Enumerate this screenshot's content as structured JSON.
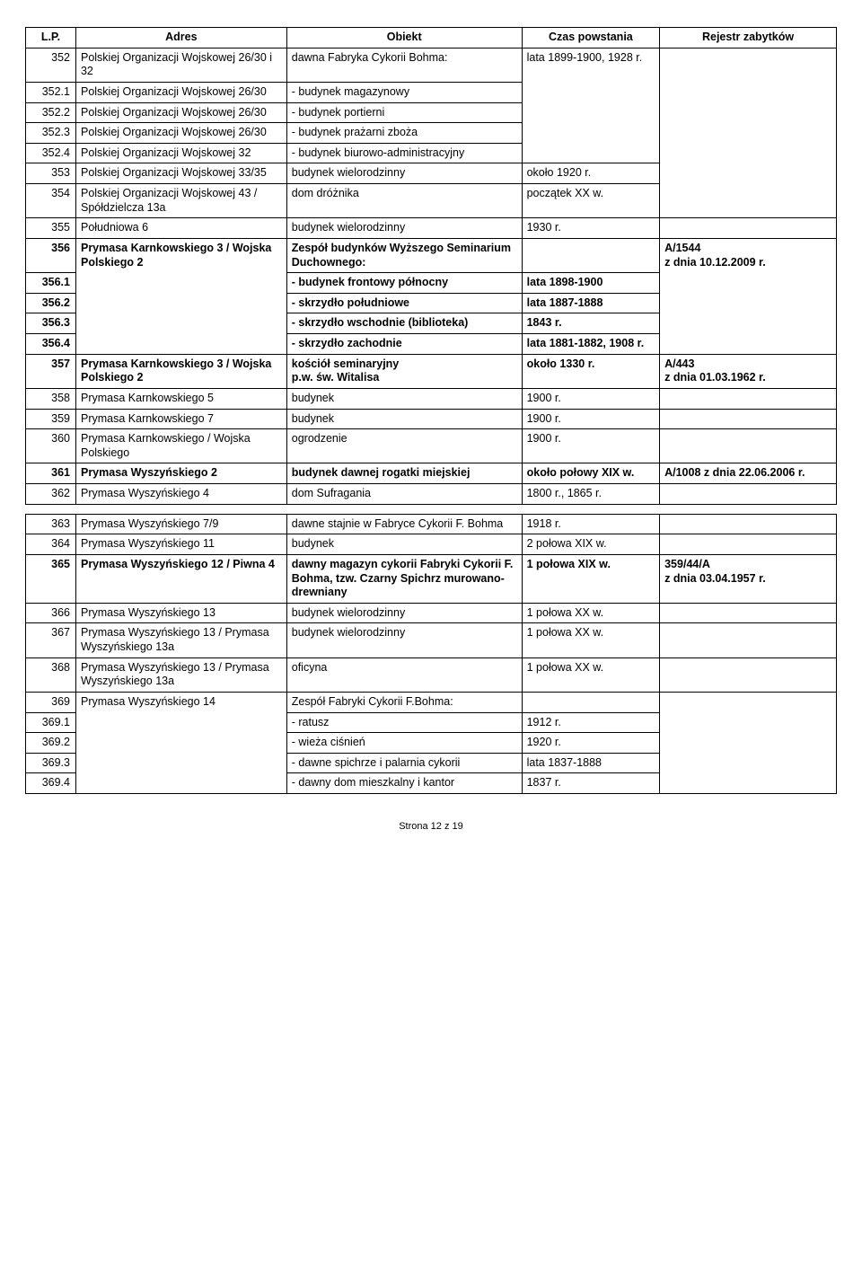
{
  "headers": {
    "lp": "L.P.",
    "adres": "Adres",
    "obiekt": "Obiekt",
    "czas": "Czas powstania",
    "rejestr": "Rejestr zabytków"
  },
  "rows": [
    {
      "lp": "352",
      "adres": "Polskiej Organizacji Wojskowej 26/30 i 32",
      "obj": "dawna Fabryka Cykorii Bohma:",
      "czas": "lata 1899-1900, 1928 r.",
      "rej": "",
      "rejRowspan": 7,
      "czasRowspan": 5
    },
    {
      "lp": "352.1",
      "adres": "Polskiej Organizacji Wojskowej 26/30",
      "obj": "- budynek magazynowy"
    },
    {
      "lp": "352.2",
      "adres": "Polskiej Organizacji Wojskowej 26/30",
      "obj": "- budynek portierni"
    },
    {
      "lp": "352.3",
      "adres": "Polskiej Organizacji Wojskowej 26/30",
      "obj": "- budynek prażarni zboża"
    },
    {
      "lp": "352.4",
      "adres": "Polskiej Organizacji Wojskowej 32",
      "obj": "- budynek biurowo-administracyjny"
    },
    {
      "lp": "353",
      "adres": "Polskiej Organizacji Wojskowej 33/35",
      "obj": "budynek wielorodzinny",
      "czas": "około 1920 r."
    },
    {
      "lp": "354",
      "adres": "Polskiej Organizacji Wojskowej 43 / Spółdzielcza 13a",
      "obj": "dom dróżnika",
      "czas": "początek XX w."
    },
    {
      "lp": "355",
      "adres": "Południowa 6",
      "obj": "budynek wielorodzinny",
      "czas": "1930 r.",
      "rej": ""
    },
    {
      "lp": "356",
      "adres": "Prymasa Karnkowskiego 3 / Wojska Polskiego 2",
      "obj": "Zespół budynków Wyższego Seminarium Duchownego:",
      "czas": "",
      "rej": "A/1544\nz dnia 10.12.2009 r.",
      "bold": true,
      "adresRowspan": 5,
      "rejRowspan": 5
    },
    {
      "lp": "356.1",
      "obj": "- budynek frontowy północny",
      "czas": "lata 1898-1900",
      "bold": true
    },
    {
      "lp": "356.2",
      "obj": "- skrzydło południowe",
      "czas": "lata 1887-1888",
      "bold": true
    },
    {
      "lp": "356.3",
      "obj": "- skrzydło wschodnie (biblioteka)",
      "czas": "1843 r.",
      "bold": true
    },
    {
      "lp": "356.4",
      "obj": "- skrzydło zachodnie",
      "czas": "lata 1881-1882, 1908 r.",
      "bold": true
    },
    {
      "lp": "357",
      "adres": "Prymasa Karnkowskiego 3 / Wojska Polskiego 2",
      "obj": "kościół seminaryjny\np.w. św. Witalisa",
      "czas": "około 1330 r.",
      "rej": "A/443\nz dnia 01.03.1962 r.",
      "bold": true
    },
    {
      "lp": "358",
      "adres": "Prymasa Karnkowskiego 5",
      "obj": "budynek",
      "czas": "1900 r.",
      "rej": ""
    },
    {
      "lp": "359",
      "adres": "Prymasa Karnkowskiego 7",
      "obj": "budynek",
      "czas": "1900 r.",
      "rej": ""
    },
    {
      "lp": "360",
      "adres": "Prymasa Karnkowskiego / Wojska Polskiego",
      "obj": "ogrodzenie",
      "czas": "1900 r.",
      "rej": ""
    },
    {
      "lp": "361",
      "adres": "Prymasa Wyszyńskiego 2",
      "obj": "budynek dawnej rogatki miejskiej",
      "czas": "około połowy XIX w.",
      "rej": "A/1008 z dnia 22.06.2006 r.",
      "bold": true
    },
    {
      "lp": "362",
      "adres": "Prymasa Wyszyńskiego 4",
      "obj": "dom Sufragania",
      "czas": "1800 r., 1865 r.",
      "rej": ""
    },
    {
      "lp": "363",
      "adres": "Prymasa Wyszyńskiego 7/9",
      "obj": "dawne stajnie w Fabryce Cykorii F. Bohma",
      "czas": "1918 r.",
      "rej": "",
      "gapBefore": true
    },
    {
      "lp": "364",
      "adres": "Prymasa Wyszyńskiego 11",
      "obj": "budynek",
      "czas": "2 połowa XIX w.",
      "rej": ""
    },
    {
      "lp": "365",
      "adres": "Prymasa Wyszyńskiego 12 / Piwna 4",
      "obj": "dawny magazyn cykorii Fabryki Cykorii F. Bohma, tzw. Czarny Spichrz murowano-drewniany",
      "czas": "1 połowa XIX w.",
      "rej": "359/44/A\nz dnia 03.04.1957 r.",
      "bold": true
    },
    {
      "lp": "366",
      "adres": "Prymasa Wyszyńskiego 13",
      "obj": "budynek wielorodzinny",
      "czas": "1 połowa XX w.",
      "rej": ""
    },
    {
      "lp": "367",
      "adres": "Prymasa Wyszyńskiego 13 / Prymasa Wyszyńskiego 13a",
      "obj": "budynek wielorodzinny",
      "czas": "1 połowa XX w.",
      "rej": ""
    },
    {
      "lp": "368",
      "adres": "Prymasa Wyszyńskiego 13 / Prymasa Wyszyńskiego 13a",
      "obj": "oficyna",
      "czas": "1 połowa XX w.",
      "rej": ""
    },
    {
      "lp": "369",
      "adres": "Prymasa Wyszyńskiego 14",
      "obj": "Zespół Fabryki Cykorii F.Bohma:",
      "czas": "",
      "rej": "",
      "adresRowspan": 5,
      "rejRowspan": 5
    },
    {
      "lp": "369.1",
      "obj": "- ratusz",
      "czas": "1912 r."
    },
    {
      "lp": "369.2",
      "obj": "- wieża ciśnień",
      "czas": "1920 r."
    },
    {
      "lp": "369.3",
      "obj": "- dawne spichrze i palarnia cykorii",
      "czas": "lata 1837-1888"
    },
    {
      "lp": "369.4",
      "obj": "- dawny dom mieszkalny i kantor",
      "czas": "1837 r."
    }
  ],
  "footer": "Strona 12 z 19"
}
